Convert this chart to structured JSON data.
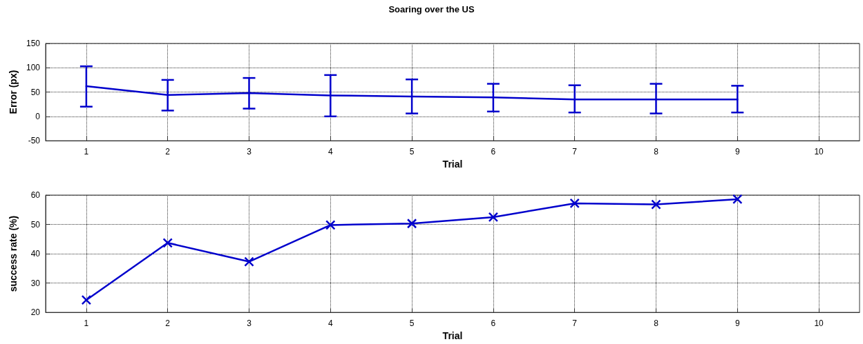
{
  "chart_data": [
    {
      "type": "line",
      "title": "Soaring over the US",
      "xlabel": "Trial",
      "ylabel": "Error (px)",
      "x": [
        1,
        2,
        3,
        4,
        5,
        6,
        7,
        8,
        9
      ],
      "series": [
        {
          "color": "#0000cc",
          "values": [
            62,
            44,
            48,
            43,
            41,
            39,
            35,
            35,
            35
          ],
          "errors": [
            [
              20,
              103
            ],
            [
              12,
              75
            ],
            [
              16,
              79
            ],
            [
              0,
              85
            ],
            [
              6,
              76
            ],
            [
              10,
              67
            ],
            [
              8,
              64
            ],
            [
              6,
              67
            ],
            [
              8,
              63
            ]
          ]
        }
      ],
      "xlim": [
        0.5,
        10.5
      ],
      "xticks": [
        1,
        2,
        3,
        4,
        5,
        6,
        7,
        8,
        9,
        10
      ],
      "ylim": [
        -50,
        150
      ],
      "yticks": [
        -50,
        0,
        50,
        100,
        150
      ],
      "grid": true,
      "marker": "none",
      "line_style": "solid"
    },
    {
      "type": "line",
      "xlabel": "Trial",
      "ylabel": "success rate (%)",
      "x": [
        1,
        2,
        3,
        4,
        5,
        6,
        7,
        8,
        9
      ],
      "series": [
        {
          "color": "#0000cc",
          "values": [
            24.2,
            43.7,
            37.3,
            49.8,
            50.3,
            52.5,
            57.2,
            56.8,
            58.6
          ]
        }
      ],
      "xlim": [
        0.5,
        10.5
      ],
      "xticks": [
        1,
        2,
        3,
        4,
        5,
        6,
        7,
        8,
        9,
        10
      ],
      "ylim": [
        20,
        60
      ],
      "yticks": [
        20,
        30,
        40,
        50,
        60
      ],
      "grid": true,
      "marker": "cross",
      "line_style": "solid"
    }
  ]
}
